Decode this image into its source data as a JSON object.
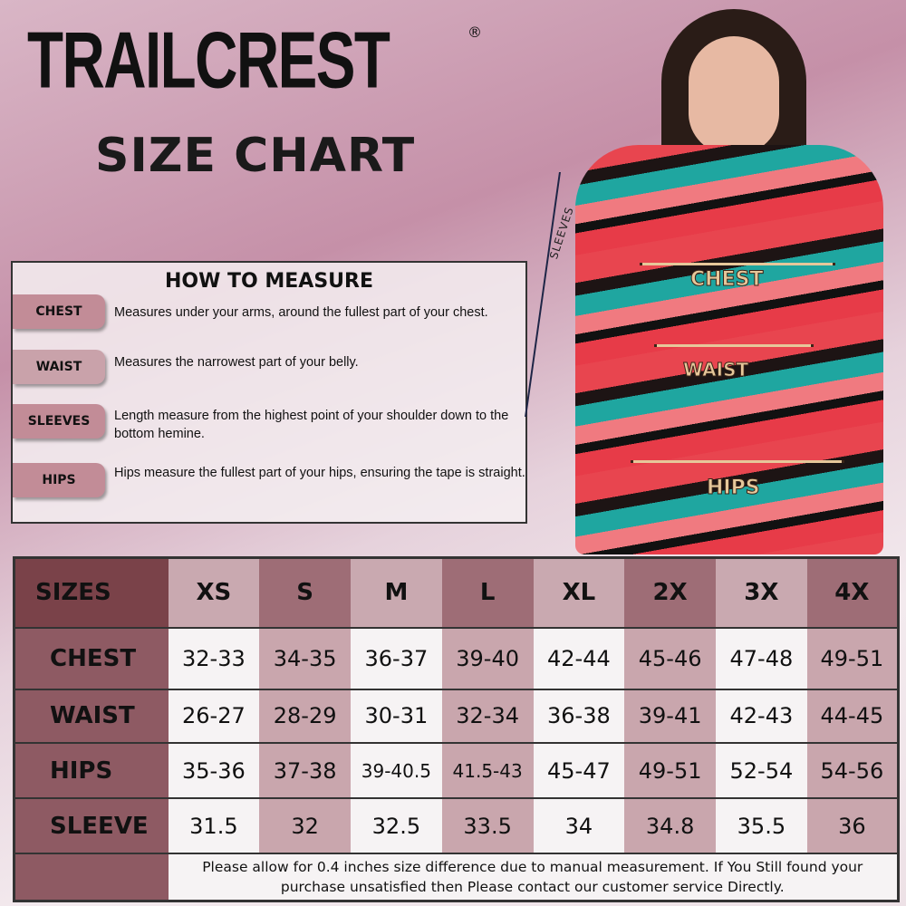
{
  "brand": {
    "name": "TRAILCREST",
    "registered": "®",
    "subtitle": "SIZE CHART"
  },
  "how_to_measure": {
    "title": "HOW TO MEASURE",
    "items": [
      {
        "label": "CHEST",
        "description": "Measures under your arms, around the fullest part of your chest."
      },
      {
        "label": "WAIST",
        "description": "Measures the narrowest part of your belly."
      },
      {
        "label": "SLEEVES",
        "description": "Length measure from the highest point of your shoulder down to the bottom hemine."
      },
      {
        "label": "HIPS",
        "description": "Hips measure the fullest part of your hips, ensuring the tape is straight."
      }
    ]
  },
  "photo": {
    "labels": {
      "chest": "CHEST",
      "waist": "WAIST",
      "hips": "HIPS",
      "sleeves": "SLEEVES"
    }
  },
  "size_table": {
    "header": "SIZES",
    "sizes": [
      "XS",
      "S",
      "M",
      "L",
      "XL",
      "2X",
      "3X",
      "4X"
    ],
    "rows": [
      {
        "label": "CHEST",
        "values": [
          "32-33",
          "34-35",
          "36-37",
          "39-40",
          "42-44",
          "45-46",
          "47-48",
          "49-51"
        ]
      },
      {
        "label": "WAIST",
        "values": [
          "26-27",
          "28-29",
          "30-31",
          "32-34",
          "36-38",
          "39-41",
          "42-43",
          "44-45"
        ]
      },
      {
        "label": "HIPS",
        "values": [
          "35-36",
          "37-38",
          "39-40.5",
          "41.5-43",
          "45-47",
          "49-51",
          "52-54",
          "54-56"
        ]
      },
      {
        "label": "SLEEVE",
        "values": [
          "31.5",
          "32",
          "32.5",
          "33.5",
          "34",
          "34.8",
          "35.5",
          "36"
        ]
      }
    ],
    "note": "Please allow for 0.4 inches size difference due to manual measurement. If You Still found your purchase unsatisfied then Please contact our customer service Directly."
  },
  "colors": {
    "row_header": "#8e5a63",
    "col_light": "#c9a9b0",
    "col_dark": "#9e6d76",
    "cell_pink": "#c9a6ad"
  }
}
